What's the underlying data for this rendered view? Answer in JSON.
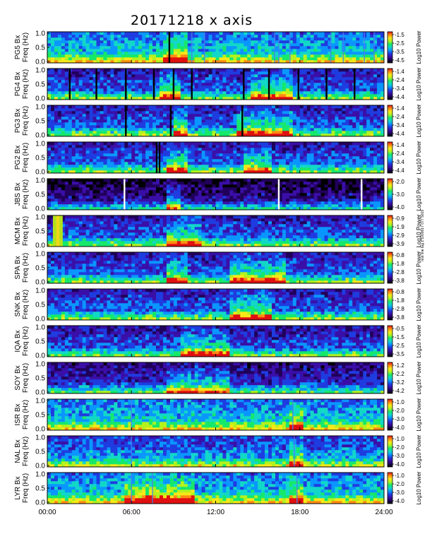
{
  "page": {
    "title": "20171218 x axis",
    "side_note": "rest line tag 1 1000617 077 5019"
  },
  "chart_data": [
    {
      "type": "heatmap",
      "station": "PG5",
      "ylabel": "PG5  Bx\nFreq (Hz)",
      "yticks": [
        "1.0",
        "0.5",
        "0.0"
      ],
      "ylim": [
        0,
        1.0
      ],
      "colorbar_label": "Log10 Power",
      "colorbar_ticks": [
        "-1.5",
        "-2.5",
        "-3.5",
        "-4.5"
      ],
      "gaps_hours": [
        8.7
      ],
      "gap_color": "#000000",
      "streaks_hours": [
        10.3,
        11.2,
        16.2,
        16.5,
        17.3,
        20.2,
        21.1,
        22.6,
        23.3
      ],
      "bright_hours": [
        [
          8.3,
          10.0
        ]
      ],
      "base_level": 0.35
    },
    {
      "type": "heatmap",
      "station": "PG4",
      "ylabel": "PG4  Bx\nFreq (Hz)",
      "yticks": [
        "1.0",
        "0.5",
        "0.0"
      ],
      "ylim": [
        0,
        1.0
      ],
      "colorbar_label": "Log10 Power",
      "colorbar_ticks": [
        "-1.4",
        "-2.4",
        "-3.4",
        "-4.4"
      ],
      "gaps_hours": [
        1.6,
        3.5,
        5.6,
        7.6,
        9.0,
        10.3,
        14.0,
        15.8,
        17.9,
        19.9,
        21.9
      ],
      "gap_color": "#000000",
      "streaks_hours": [],
      "bright_hours": [
        [
          8.0,
          9.5
        ],
        [
          14.5,
          17.5
        ]
      ],
      "base_level": 0.22
    },
    {
      "type": "heatmap",
      "station": "PG3",
      "ylabel": "PG3  Bx\nFreq (Hz)",
      "yticks": [
        "1.0",
        "0.5",
        "0.0"
      ],
      "ylim": [
        0,
        1.0
      ],
      "colorbar_label": "Log10 Power",
      "colorbar_ticks": [
        "-1.4",
        "-2.4",
        "-3.4",
        "-4.4"
      ],
      "gaps_hours": [
        5.6,
        8.8,
        13.9
      ],
      "gap_color": "#000000",
      "streaks_hours": [],
      "bright_hours": [
        [
          9.0,
          10.0
        ],
        [
          13.5,
          17.5
        ]
      ],
      "base_level": 0.22
    },
    {
      "type": "heatmap",
      "station": "PG2",
      "ylabel": "PG2  Bx\nFreq (Hz)",
      "yticks": [
        "1.0",
        "0.5",
        "0.0"
      ],
      "ylim": [
        0,
        1.0
      ],
      "colorbar_label": "Log10 Power",
      "colorbar_ticks": [
        "-1.4",
        "-2.4",
        "-3.4",
        "-4.4"
      ],
      "gaps_hours": [
        7.8,
        8.0
      ],
      "gap_color": "#000000",
      "streaks_hours": [],
      "bright_hours": [
        [
          8.5,
          10.0
        ],
        [
          14.0,
          16.0
        ]
      ],
      "base_level": 0.22
    },
    {
      "type": "heatmap",
      "station": "JBS",
      "ylabel": "JBS  Bx\nFreq (Hz)",
      "yticks": [
        "1.0",
        "0.5",
        "0.0"
      ],
      "ylim": [
        0,
        1.0
      ],
      "colorbar_label": "Log10 Power",
      "colorbar_ticks": [
        "-2.0",
        "-3.0",
        "-4.0"
      ],
      "gaps_hours": [
        5.5,
        16.5,
        22.4
      ],
      "gap_color": "#ffffff",
      "streaks_hours": [],
      "bright_hours": [
        [
          8.5,
          9.5
        ]
      ],
      "base_level": 0.08
    },
    {
      "type": "heatmap",
      "station": "MCM",
      "ylabel": "MCM  Bx\nFreq (Hz)",
      "yticks": [
        "1.0",
        "0.5",
        "0.0"
      ],
      "ylim": [
        0,
        1.0
      ],
      "colorbar_label": "Log10 Power",
      "colorbar_ticks": [
        "-0.9",
        "-1.9",
        "-2.9",
        "-3.9"
      ],
      "gaps_hours": [],
      "gap_color": "#000000",
      "streaks_hours": [],
      "bright_hours": [
        [
          8.5,
          11.0
        ]
      ],
      "base_level": 0.22,
      "saturated_hours": [
        0.4,
        1.1
      ]
    },
    {
      "type": "heatmap",
      "station": "SPA",
      "ylabel": "SPA  Bx\nFreq (Hz)",
      "yticks": [
        "1.0",
        "0.5",
        "0.0"
      ],
      "ylim": [
        0,
        1.0
      ],
      "colorbar_label": "Log10 Power",
      "colorbar_ticks": [
        "-0.8",
        "-1.8",
        "-2.8",
        "-3.8"
      ],
      "gaps_hours": [],
      "gap_color": "#000000",
      "streaks_hours": [],
      "bright_hours": [
        [
          8.5,
          10.0
        ],
        [
          13.0,
          17.0
        ]
      ],
      "base_level": 0.22
    },
    {
      "type": "heatmap",
      "station": "SNK",
      "ylabel": "SNK  Bx\nFreq (Hz)",
      "yticks": [
        "1.0",
        "0.5",
        "0.0"
      ],
      "ylim": [
        0,
        1.0
      ],
      "colorbar_label": "Log10 Power",
      "colorbar_ticks": [
        "-0.8",
        "-1.8",
        "-2.8",
        "-3.8"
      ],
      "gaps_hours": [],
      "gap_color": "#000000",
      "streaks_hours": [],
      "bright_hours": [
        [
          13.0,
          16.0
        ]
      ],
      "base_level": 0.22
    },
    {
      "type": "heatmap",
      "station": "IQA",
      "ylabel": "IQA  Bx\nFreq (Hz)",
      "yticks": [
        "1.0",
        "0.5",
        "0.0"
      ],
      "ylim": [
        0,
        1.0
      ],
      "colorbar_label": "Log10 Power",
      "colorbar_ticks": [
        "-0.5",
        "-1.5",
        "-2.5",
        "-3.5"
      ],
      "gaps_hours": [],
      "gap_color": "#000000",
      "streaks_hours": [],
      "bright_hours": [
        [
          9.5,
          13.0
        ]
      ],
      "base_level": 0.2
    },
    {
      "type": "heatmap",
      "station": "SOY",
      "ylabel": "SOY  Bx\nFreq (Hz)",
      "yticks": [
        "1.0",
        "0.5",
        "0.0"
      ],
      "ylim": [
        0,
        1.0
      ],
      "colorbar_label": "Log10 Power",
      "colorbar_ticks": [
        "-1.2",
        "-2.2",
        "-3.2",
        "-4.2"
      ],
      "gaps_hours": [],
      "gap_color": "#000000",
      "streaks_hours": [],
      "bright_hours": [
        [
          8.5,
          13.0
        ]
      ],
      "base_level": 0.15
    },
    {
      "type": "heatmap",
      "station": "ISR",
      "ylabel": "ISR  Bx\nFreq (Hz)",
      "yticks": [
        "1.0",
        "0.5",
        "0.0"
      ],
      "ylim": [
        0,
        1.0
      ],
      "colorbar_label": "Log10 Power",
      "colorbar_ticks": [
        "-1.0",
        "-2.0",
        "-3.0",
        "-4.0"
      ],
      "gaps_hours": [],
      "gap_color": "#000000",
      "streaks_hours": [
        6.0,
        17.5
      ],
      "bright_hours": [
        [
          17.3,
          18.2
        ]
      ],
      "base_level": 0.35
    },
    {
      "type": "heatmap",
      "station": "NAL",
      "ylabel": "NAL  Bx\nFreq (Hz)",
      "yticks": [
        "1.0",
        "0.5",
        "0.0"
      ],
      "ylim": [
        0,
        1.0
      ],
      "colorbar_label": "Log10 Power",
      "colorbar_ticks": [
        "-1.0",
        "-2.0",
        "-3.0",
        "-4.0"
      ],
      "gaps_hours": [],
      "gap_color": "#000000",
      "streaks_hours": [
        6.0,
        17.6
      ],
      "bright_hours": [
        [
          17.3,
          18.2
        ]
      ],
      "base_level": 0.28
    },
    {
      "type": "heatmap",
      "station": "LYR",
      "ylabel": "LYR  Bx\nFreq (Hz)",
      "yticks": [
        "1.0",
        "0.5",
        "0.0"
      ],
      "ylim": [
        0,
        1.0
      ],
      "colorbar_label": "Log10 Power",
      "colorbar_ticks": [
        "-1.0",
        "-2.0",
        "-3.0",
        "-4.0"
      ],
      "gaps_hours": [],
      "gap_color": "#000000",
      "streaks_hours": [
        6.0,
        7.5,
        17.8
      ],
      "bright_hours": [
        [
          5.5,
          10.5
        ],
        [
          17.3,
          18.2
        ]
      ],
      "base_level": 0.35
    }
  ],
  "x_axis": {
    "ticks": [
      "00:00",
      "06:00",
      "12:00",
      "18:00",
      "24:00"
    ],
    "range_hours": [
      0,
      24
    ]
  },
  "colorscale": [
    "#000000",
    "#20005a",
    "#3a0fa8",
    "#1e3ce0",
    "#0a96ff",
    "#12d8c8",
    "#16e86a",
    "#b4f21e",
    "#f8e818",
    "#ff8a12",
    "#e01010"
  ]
}
